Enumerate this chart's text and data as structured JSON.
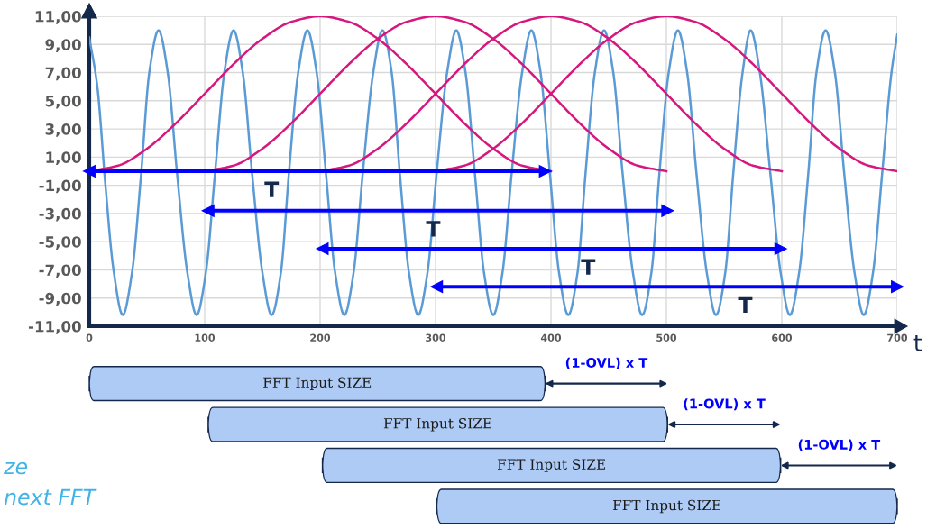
{
  "chart_data": {
    "type": "line",
    "xlabel": "t",
    "xlim": [
      0,
      700
    ],
    "xticks": [
      0,
      100,
      200,
      300,
      400,
      500,
      600,
      700
    ],
    "ylim": [
      -11,
      11
    ],
    "yticks": [
      {
        "value": -11,
        "label": "-11,00"
      },
      {
        "value": -9,
        "label": "-9,00"
      },
      {
        "value": -7,
        "label": "-7,00"
      },
      {
        "value": -5,
        "label": "-5,00"
      },
      {
        "value": -3,
        "label": "-3,00"
      },
      {
        "value": -1,
        "label": "-1,00"
      },
      {
        "value": 1,
        "label": "1,00"
      },
      {
        "value": 3,
        "label": "3,00"
      },
      {
        "value": 5,
        "label": "5,00"
      },
      {
        "value": 7,
        "label": "7,00"
      },
      {
        "value": 9,
        "label": "9,00"
      },
      {
        "value": 11,
        "label": "11,00"
      }
    ],
    "grid": true,
    "series": [
      {
        "color": "#5b9bd5",
        "x": [
          0,
          7,
          14,
          21,
          29,
          37,
          45,
          52,
          60,
          68,
          76,
          85,
          93,
          101,
          109,
          117,
          125,
          133,
          141,
          150,
          158,
          166,
          173,
          181,
          189,
          197,
          205,
          213,
          221,
          229,
          237,
          246,
          254,
          262,
          269,
          277,
          285,
          293,
          301,
          310,
          318,
          326,
          334,
          342,
          350,
          358,
          366,
          375,
          383,
          391,
          399,
          407,
          415,
          423,
          430,
          438,
          446,
          454,
          462,
          471,
          479,
          487,
          494,
          502,
          510,
          518,
          526,
          535,
          543,
          551,
          558,
          566,
          573,
          581,
          590,
          599,
          607,
          615,
          623,
          630,
          638,
          646,
          654,
          663,
          671,
          679,
          687,
          695,
          700
        ],
        "values": [
          9.5,
          6,
          -1,
          -7,
          -10.2,
          -7.2,
          -0.1,
          7,
          10,
          7,
          -0.1,
          -7.2,
          -10.2,
          -7.2,
          -0.1,
          7,
          10,
          7,
          -0.1,
          -7.2,
          -10.2,
          -7.2,
          -0.1,
          7,
          10,
          7,
          -0.1,
          -7.2,
          -10.2,
          -7.2,
          -0.1,
          7,
          10,
          7,
          -0.1,
          -7.2,
          -10.2,
          -7.2,
          -0.1,
          7,
          10,
          7,
          -0.1,
          -7.2,
          -10.2,
          -7.2,
          -0.1,
          7,
          10,
          7,
          -0.1,
          -7.2,
          -10.2,
          -7.2,
          -0.1,
          7,
          10,
          7,
          -0.1,
          -7.2,
          -10.2,
          -7.2,
          -0.1,
          7,
          10,
          7,
          -0.1,
          -7.2,
          -10.2,
          -7.2,
          -0.1,
          7,
          10,
          7,
          -0.1,
          -7.2,
          -10.2,
          -7.2,
          -0.1,
          7,
          10,
          7,
          -0.1,
          -7.2,
          -10.2,
          -7.2,
          -0.1,
          7,
          9.7
        ]
      },
      {
        "color": "#d6177d",
        "x": [
          0,
          25,
          50,
          75,
          100,
          125,
          150,
          175,
          200,
          225,
          250,
          275,
          300,
          325,
          350,
          375,
          400
        ],
        "values": [
          0,
          0.4,
          1.6,
          3.4,
          5.5,
          7.6,
          9.4,
          10.6,
          11,
          10.6,
          9.4,
          7.6,
          5.5,
          3.4,
          1.6,
          0.4,
          0
        ]
      },
      {
        "color": "#d6177d",
        "x": [
          100,
          125,
          150,
          175,
          200,
          225,
          250,
          275,
          300,
          325,
          350,
          375,
          400,
          425,
          450,
          475,
          500
        ],
        "values": [
          0,
          0.4,
          1.6,
          3.4,
          5.5,
          7.6,
          9.4,
          10.6,
          11,
          10.6,
          9.4,
          7.6,
          5.5,
          3.4,
          1.6,
          0.4,
          0
        ]
      },
      {
        "color": "#d6177d",
        "x": [
          200,
          225,
          250,
          275,
          300,
          325,
          350,
          375,
          400,
          425,
          450,
          475,
          500,
          525,
          550,
          575,
          600
        ],
        "values": [
          0,
          0.4,
          1.6,
          3.4,
          5.5,
          7.6,
          9.4,
          10.6,
          11,
          10.6,
          9.4,
          7.6,
          5.5,
          3.4,
          1.6,
          0.4,
          0
        ]
      },
      {
        "color": "#d6177d",
        "x": [
          300,
          325,
          350,
          375,
          400,
          425,
          450,
          475,
          500,
          525,
          550,
          575,
          600,
          625,
          650,
          675,
          700
        ],
        "values": [
          0,
          0.4,
          1.6,
          3.4,
          5.5,
          7.6,
          9.4,
          10.6,
          11,
          10.6,
          9.4,
          7.6,
          5.5,
          3.4,
          1.6,
          0.4,
          0
        ]
      },
      {
        "color": "#0000ff",
        "marker": "triangle",
        "x": [
          0,
          395
        ],
        "values": [
          0,
          0
        ]
      },
      {
        "color": "#0000ff",
        "marker": "triangle",
        "x": [
          103,
          501
        ],
        "values": [
          -2.8,
          -2.8
        ]
      },
      {
        "color": "#0000ff",
        "marker": "triangle",
        "x": [
          202,
          599
        ],
        "values": [
          -5.5,
          -5.5
        ]
      },
      {
        "color": "#0000ff",
        "marker": "triangle",
        "x": [
          301,
          700
        ],
        "values": [
          -8.2,
          -8.2
        ]
      }
    ],
    "annotations": [
      "T",
      "T",
      "T",
      "T",
      "FFT Input SIZE",
      "FFT Input SIZE",
      "FFT Input SIZE",
      "FFT Input SIZE",
      "(1-OVL) x T",
      "(1-OVL) x T",
      "(1-OVL) x T",
      "ze",
      "next FFT"
    ]
  }
}
